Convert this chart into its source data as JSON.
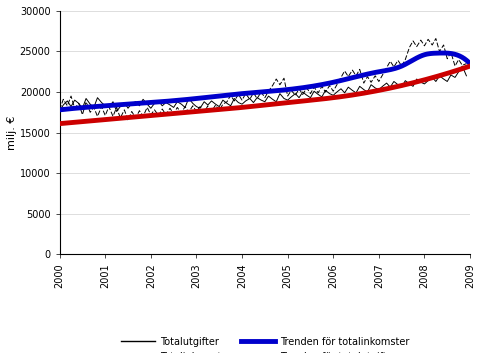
{
  "ylabel": "milj. €",
  "ylim": [
    0,
    30000
  ],
  "yticks": [
    0,
    5000,
    10000,
    15000,
    20000,
    25000,
    30000
  ],
  "background_color": "#ffffff",
  "grid_color": "#d0d0d0",
  "totalutgifter_x": [
    2000.0,
    2000.08,
    2000.17,
    2000.25,
    2000.33,
    2000.42,
    2000.5,
    2000.58,
    2000.67,
    2000.75,
    2000.83,
    2000.92,
    2001.0,
    2001.08,
    2001.17,
    2001.25,
    2001.33,
    2001.42,
    2001.5,
    2001.58,
    2001.67,
    2001.75,
    2001.83,
    2001.92,
    2002.0,
    2002.08,
    2002.17,
    2002.25,
    2002.33,
    2002.42,
    2002.5,
    2002.58,
    2002.67,
    2002.75,
    2002.83,
    2002.92,
    2003.0,
    2003.08,
    2003.17,
    2003.25,
    2003.33,
    2003.42,
    2003.5,
    2003.58,
    2003.67,
    2003.75,
    2003.83,
    2003.92,
    2004.0,
    2004.08,
    2004.17,
    2004.25,
    2004.33,
    2004.42,
    2004.5,
    2004.58,
    2004.67,
    2004.75,
    2004.83,
    2004.92,
    2005.0,
    2005.08,
    2005.17,
    2005.25,
    2005.33,
    2005.42,
    2005.5,
    2005.58,
    2005.67,
    2005.75,
    2005.83,
    2005.92,
    2006.0,
    2006.08,
    2006.17,
    2006.25,
    2006.33,
    2006.42,
    2006.5,
    2006.58,
    2006.67,
    2006.75,
    2006.83,
    2006.92,
    2007.0,
    2007.08,
    2007.17,
    2007.25,
    2007.33,
    2007.42,
    2007.5,
    2007.58,
    2007.67,
    2007.75,
    2007.83,
    2007.92,
    2008.0,
    2008.08,
    2008.17,
    2008.25,
    2008.33,
    2008.42,
    2008.5,
    2008.58,
    2008.67,
    2008.75,
    2008.83,
    2008.92
  ],
  "totalutgifter_y": [
    17600,
    18400,
    18900,
    18200,
    19000,
    18600,
    18000,
    19200,
    18500,
    18100,
    19300,
    18700,
    18300,
    18100,
    18800,
    17600,
    18200,
    18700,
    18000,
    18600,
    18800,
    18300,
    19100,
    18500,
    18000,
    18600,
    18900,
    18300,
    18700,
    18400,
    18100,
    18800,
    18500,
    18100,
    19200,
    18600,
    18200,
    18000,
    18800,
    18400,
    18900,
    18500,
    18200,
    19000,
    18600,
    18300,
    19200,
    18700,
    18500,
    18900,
    19200,
    18700,
    19300,
    19000,
    18800,
    19500,
    19100,
    18800,
    19800,
    19200,
    19000,
    19400,
    19800,
    19300,
    20000,
    19600,
    19300,
    20100,
    19700,
    19400,
    20200,
    19800,
    19600,
    20000,
    20400,
    19900,
    20600,
    20200,
    19900,
    20700,
    20300,
    20000,
    20900,
    20500,
    20300,
    20700,
    21100,
    20600,
    21300,
    20900,
    20600,
    21400,
    21000,
    20700,
    21600,
    21200,
    21000,
    21400,
    21800,
    21300,
    22000,
    21600,
    21300,
    22100,
    21800,
    22500,
    23200,
    22000
  ],
  "totalinkomster_x": [
    2000.0,
    2000.08,
    2000.17,
    2000.25,
    2000.33,
    2000.42,
    2000.5,
    2000.58,
    2000.67,
    2000.75,
    2000.83,
    2000.92,
    2001.0,
    2001.08,
    2001.17,
    2001.25,
    2001.33,
    2001.42,
    2001.5,
    2001.58,
    2001.67,
    2001.75,
    2001.83,
    2001.92,
    2002.0,
    2002.08,
    2002.17,
    2002.25,
    2002.33,
    2002.42,
    2002.5,
    2002.58,
    2002.67,
    2002.75,
    2002.83,
    2002.92,
    2003.0,
    2003.08,
    2003.17,
    2003.25,
    2003.33,
    2003.42,
    2003.5,
    2003.58,
    2003.67,
    2003.75,
    2003.83,
    2003.92,
    2004.0,
    2004.08,
    2004.17,
    2004.25,
    2004.33,
    2004.42,
    2004.5,
    2004.58,
    2004.67,
    2004.75,
    2004.83,
    2004.92,
    2005.0,
    2005.08,
    2005.17,
    2005.25,
    2005.33,
    2005.42,
    2005.5,
    2005.58,
    2005.67,
    2005.75,
    2005.83,
    2005.92,
    2006.0,
    2006.08,
    2006.17,
    2006.25,
    2006.33,
    2006.42,
    2006.5,
    2006.58,
    2006.67,
    2006.75,
    2006.83,
    2006.92,
    2007.0,
    2007.08,
    2007.17,
    2007.25,
    2007.33,
    2007.42,
    2007.5,
    2007.58,
    2007.67,
    2007.75,
    2007.83,
    2007.92,
    2008.0,
    2008.08,
    2008.17,
    2008.25,
    2008.33,
    2008.42,
    2008.5,
    2008.58,
    2008.67,
    2008.75,
    2008.83,
    2008.92
  ],
  "totalinkomster_y": [
    17800,
    19100,
    18300,
    19500,
    18000,
    18600,
    17200,
    18800,
    17500,
    18100,
    17000,
    18200,
    17100,
    18200,
    17000,
    18100,
    16800,
    17800,
    16500,
    17600,
    16800,
    17700,
    17000,
    18100,
    17200,
    17800,
    17100,
    17900,
    17200,
    18000,
    17300,
    18100,
    17400,
    18200,
    17500,
    18300,
    17600,
    18200,
    17500,
    18300,
    17600,
    18400,
    17700,
    18500,
    18800,
    19600,
    18900,
    19700,
    19000,
    19800,
    19100,
    19900,
    19200,
    20000,
    19300,
    20100,
    20800,
    21600,
    20900,
    21700,
    19500,
    20200,
    19600,
    20400,
    19700,
    20500,
    19800,
    20600,
    19900,
    20700,
    20000,
    20800,
    20100,
    20900,
    21800,
    22600,
    21900,
    22700,
    22000,
    22800,
    21100,
    21900,
    21200,
    22000,
    21300,
    22100,
    23000,
    23800,
    23100,
    23900,
    23200,
    24000,
    25500,
    26300,
    25600,
    26400,
    25700,
    26500,
    25800,
    26600,
    25000,
    25800,
    24100,
    24900,
    23200,
    24000,
    23300,
    23500
  ],
  "blue_trend_ctrl_x": [
    2000.0,
    2001.0,
    2002.0,
    2003.0,
    2004.0,
    2005.0,
    2006.0,
    2007.0,
    2007.5,
    2008.0,
    2008.3,
    2008.7,
    2009.0
  ],
  "blue_trend_ctrl_y": [
    17800,
    18300,
    18700,
    19200,
    19800,
    20300,
    21200,
    22500,
    23200,
    24600,
    24800,
    24600,
    23500
  ],
  "red_trend_ctrl_x": [
    2000.0,
    2001.0,
    2002.0,
    2003.0,
    2004.0,
    2005.0,
    2006.0,
    2007.0,
    2008.0,
    2009.0
  ],
  "red_trend_ctrl_y": [
    16100,
    16600,
    17100,
    17600,
    18100,
    18700,
    19300,
    20200,
    21500,
    23200
  ],
  "legend_row1_left_label": "Totalutgifter",
  "legend_row1_right_label": "Totalinkomster",
  "legend_row2_left_label": "Trenden för totalinkomster",
  "legend_row2_right_label": "Trenden för totalutgifter"
}
